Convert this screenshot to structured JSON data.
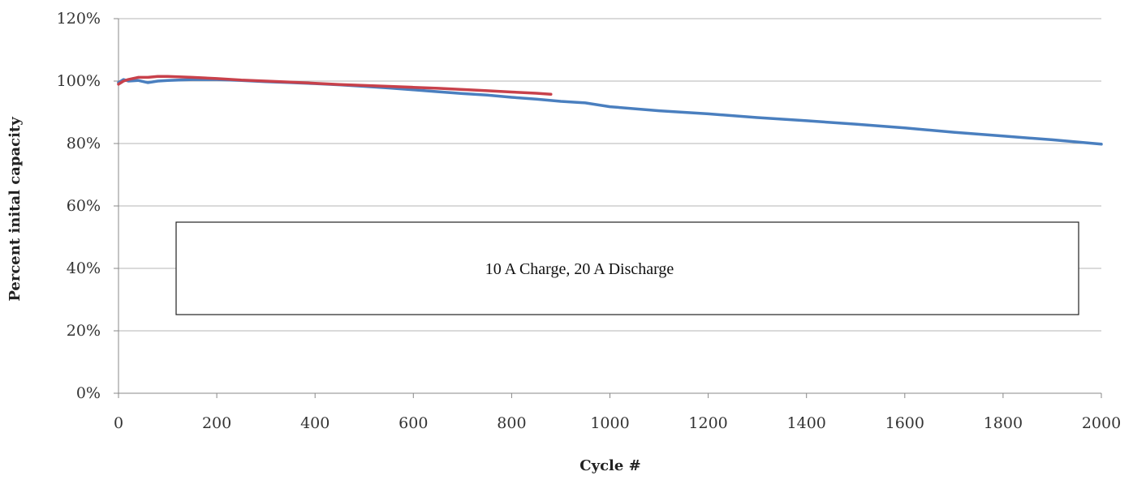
{
  "chart_data": {
    "type": "line",
    "title": "",
    "xlabel": "Cycle #",
    "ylabel": "Percent inital capacity",
    "xlim": [
      0,
      2000
    ],
    "ylim": [
      0,
      120
    ],
    "x_ticks": [
      0,
      200,
      400,
      600,
      800,
      1000,
      1200,
      1400,
      1600,
      1800,
      2000
    ],
    "y_ticks": [
      "0%",
      "20%",
      "40%",
      "60%",
      "80%",
      "100%",
      "120%"
    ],
    "grid": "horizontal",
    "annotation": "10 A Charge, 20 A Discharge",
    "series": [
      {
        "color": "#4a7fbf",
        "x": [
          0,
          10,
          20,
          40,
          60,
          80,
          100,
          150,
          200,
          250,
          300,
          350,
          400,
          450,
          500,
          550,
          600,
          650,
          700,
          750,
          800,
          850,
          900,
          950,
          1000,
          1100,
          1200,
          1300,
          1400,
          1500,
          1600,
          1700,
          1800,
          1900,
          2000
        ],
        "y": [
          99.5,
          100.5,
          100,
          100.2,
          99.5,
          100,
          100.2,
          100.5,
          100.5,
          100.2,
          99.8,
          99.5,
          99.2,
          98.8,
          98.3,
          97.8,
          97.2,
          96.6,
          96,
          95.5,
          94.8,
          94.2,
          93.5,
          93,
          91.8,
          90.5,
          89.5,
          88.3,
          87.3,
          86.2,
          85,
          83.6,
          82.4,
          81.2,
          79.8
        ]
      },
      {
        "color": "#c8414b",
        "x": [
          0,
          10,
          20,
          40,
          60,
          80,
          100,
          150,
          200,
          250,
          300,
          350,
          400,
          450,
          500,
          550,
          600,
          650,
          700,
          750,
          800,
          850,
          880
        ],
        "y": [
          99,
          100,
          100.5,
          101.2,
          101.2,
          101.5,
          101.5,
          101.2,
          100.8,
          100.3,
          100,
          99.7,
          99.3,
          98.9,
          98.6,
          98.3,
          98,
          97.7,
          97.3,
          96.9,
          96.5,
          96.1,
          95.8
        ]
      }
    ]
  }
}
